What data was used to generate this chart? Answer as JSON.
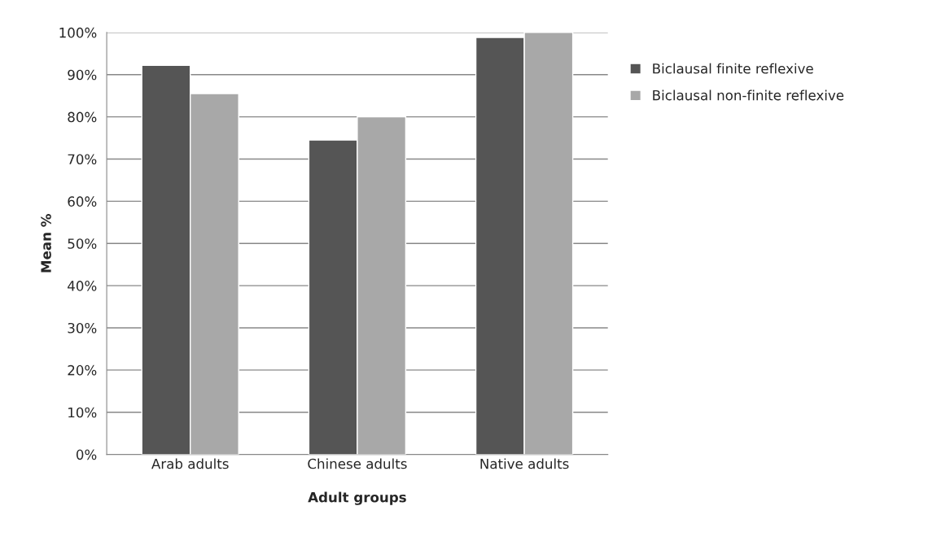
{
  "chart_data": {
    "type": "bar",
    "xlabel": "Adult groups",
    "ylabel": "Mean %",
    "categories": [
      "Arab adults",
      "Chinese adults",
      "Native adults"
    ],
    "series": [
      {
        "name": "Biclausal finite reflexive",
        "color": "#555555",
        "values": [
          92.2,
          74.5,
          98.8
        ]
      },
      {
        "name": "Biclausal non-finite reflexive",
        "color": "#a8a8a8",
        "values": [
          85.5,
          80,
          100
        ]
      }
    ],
    "ylim": [
      0,
      100
    ],
    "yticks": [
      {
        "value": 0,
        "label": "0%"
      },
      {
        "value": 10,
        "label": "10%"
      },
      {
        "value": 20,
        "label": "20%"
      },
      {
        "value": 30,
        "label": "30%"
      },
      {
        "value": 40,
        "label": "40%"
      },
      {
        "value": 50,
        "label": "50%"
      },
      {
        "value": 60,
        "label": "60%"
      },
      {
        "value": 70,
        "label": "70%"
      },
      {
        "value": 80,
        "label": "80%"
      },
      {
        "value": 90,
        "label": "90%"
      },
      {
        "value": 100,
        "label": "100%"
      }
    ],
    "grid": "y",
    "legend": "right"
  }
}
